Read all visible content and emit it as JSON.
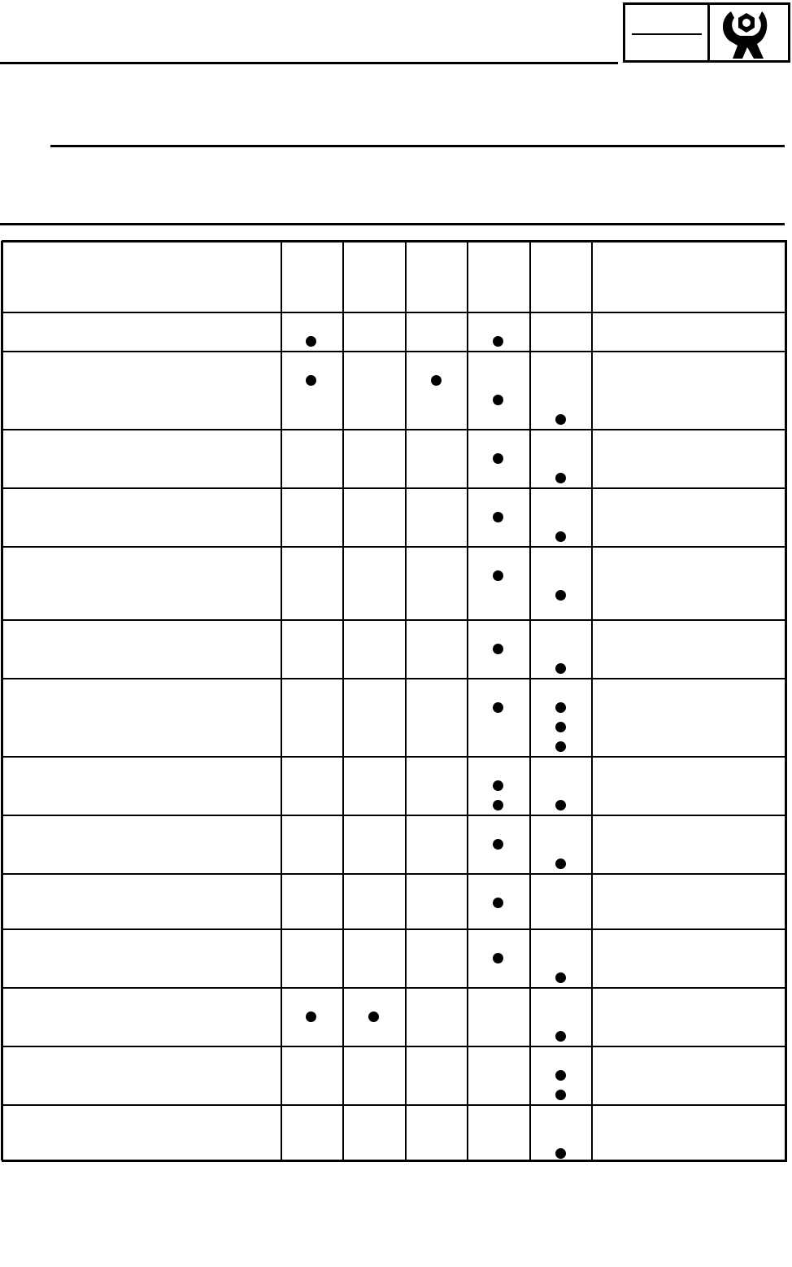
{
  "header": {
    "section_box_text": "",
    "icon": "wrench-nut-icon"
  },
  "table": {
    "columns": [
      "",
      "",
      "",
      "",
      "",
      "",
      ""
    ],
    "rows": [
      {
        "marks": [
          [
            0,
            1
          ],
          [
            3,
            1
          ]
        ]
      },
      {
        "marks": [
          [
            0,
            1
          ],
          [
            2,
            1
          ],
          [
            3,
            2
          ],
          [
            4,
            3
          ]
        ]
      },
      {
        "marks": [
          [
            3,
            1
          ],
          [
            4,
            2
          ]
        ]
      },
      {
        "marks": [
          [
            3,
            1
          ],
          [
            4,
            2
          ]
        ]
      },
      {
        "marks": [
          [
            3,
            1
          ],
          [
            4,
            2
          ]
        ]
      },
      {
        "marks": [
          [
            3,
            1
          ],
          [
            4,
            2
          ]
        ]
      },
      {
        "marks": [
          [
            3,
            1
          ],
          [
            4,
            1
          ],
          [
            4,
            2
          ],
          [
            4,
            3
          ]
        ]
      },
      {
        "marks": [
          [
            3,
            1
          ],
          [
            3,
            2
          ],
          [
            4,
            2
          ]
        ]
      },
      {
        "marks": [
          [
            3,
            1
          ],
          [
            4,
            2
          ]
        ]
      },
      {
        "marks": [
          [
            3,
            1
          ]
        ]
      },
      {
        "marks": [
          [
            3,
            1
          ],
          [
            4,
            2
          ]
        ]
      },
      {
        "marks": [
          [
            0,
            1
          ],
          [
            1,
            1
          ],
          [
            4,
            2
          ]
        ]
      },
      {
        "marks": [
          [
            4,
            1
          ],
          [
            4,
            2
          ]
        ]
      },
      {
        "marks": [
          [
            4,
            2
          ]
        ]
      }
    ]
  }
}
